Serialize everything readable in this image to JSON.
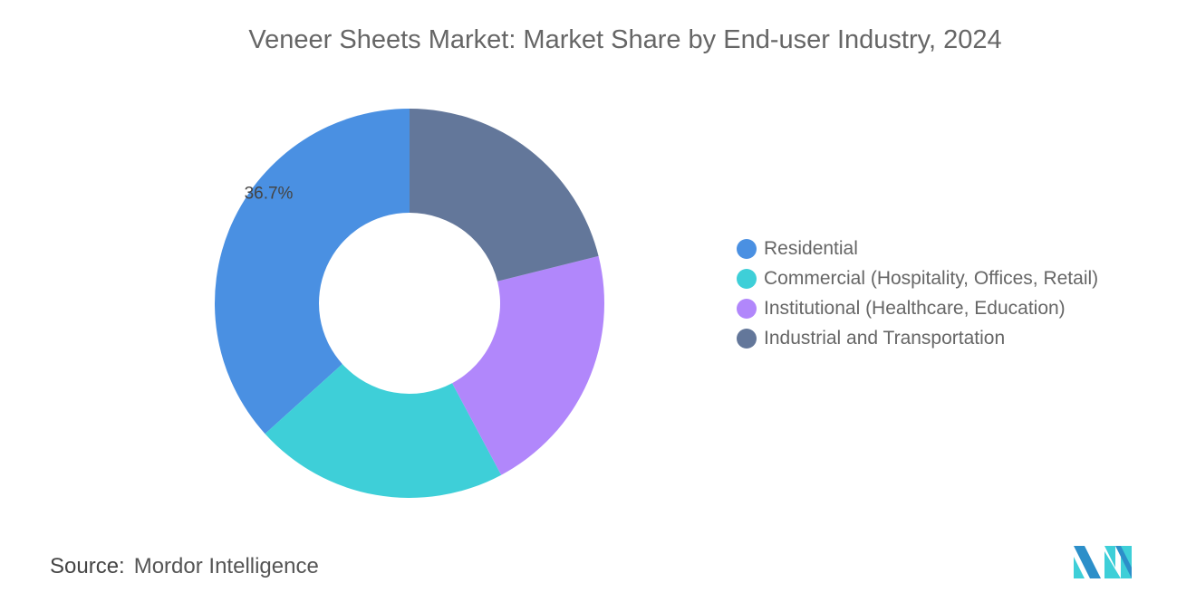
{
  "chart_data": {
    "type": "pie",
    "donut": true,
    "title": "Veneer Sheets Market: Market Share by End-user Industry, 2024",
    "categories": [
      "Residential",
      "Commercial (Hospitality, Offices, Retail)",
      "Institutional (Healthcare, Education)",
      "Industrial and Transportation"
    ],
    "values": [
      36.7,
      21.1,
      21.1,
      21.1
    ],
    "data_labels": [
      "36.7%",
      "",
      "",
      ""
    ],
    "colors": [
      "#4a90e2",
      "#3ecfd8",
      "#b187fb",
      "#63779a"
    ],
    "legend_position": "right"
  },
  "source": {
    "label": "Source:",
    "value": "Mordor Intelligence"
  },
  "logo": {
    "text": "Mordor Intelligence logo",
    "colors": [
      "#2c8fc9",
      "#3ecfd8"
    ]
  }
}
